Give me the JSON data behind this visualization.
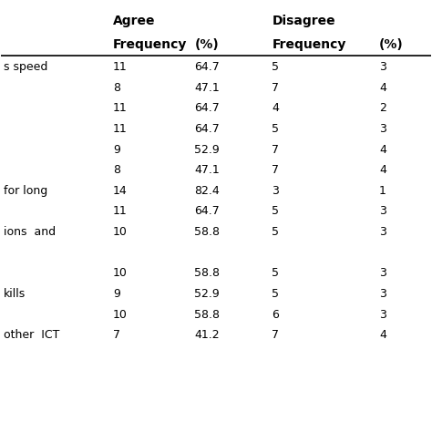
{
  "col_headers_row1": [
    "",
    "Agree",
    "",
    "Disagree",
    ""
  ],
  "col_headers_row2": [
    "",
    "Frequency",
    "(%)",
    "Frequency",
    "(%)"
  ],
  "row_labels": [
    "s speed",
    "",
    "",
    "",
    "",
    "",
    "for long",
    "",
    "ions  and",
    "",
    "",
    "kills",
    "",
    "other  ICT"
  ],
  "agree_freq": [
    11,
    8,
    11,
    11,
    9,
    8,
    14,
    11,
    10,
    10,
    9,
    10,
    7
  ],
  "agree_pct": [
    64.7,
    47.1,
    64.7,
    64.7,
    52.9,
    47.1,
    82.4,
    64.7,
    58.8,
    58.8,
    52.9,
    58.8,
    41.2
  ],
  "disagree_freq": [
    5,
    7,
    4,
    5,
    7,
    7,
    3,
    5,
    5,
    5,
    5,
    6,
    7
  ],
  "disagree_pct_partial": [
    "3",
    "4",
    "2",
    "3",
    "4",
    "4",
    "1",
    "3",
    "3",
    "3",
    "3",
    "3",
    "4"
  ],
  "background_color": "#ffffff",
  "header_line_color": "#000000",
  "font_size": 9,
  "header_font_size": 10
}
